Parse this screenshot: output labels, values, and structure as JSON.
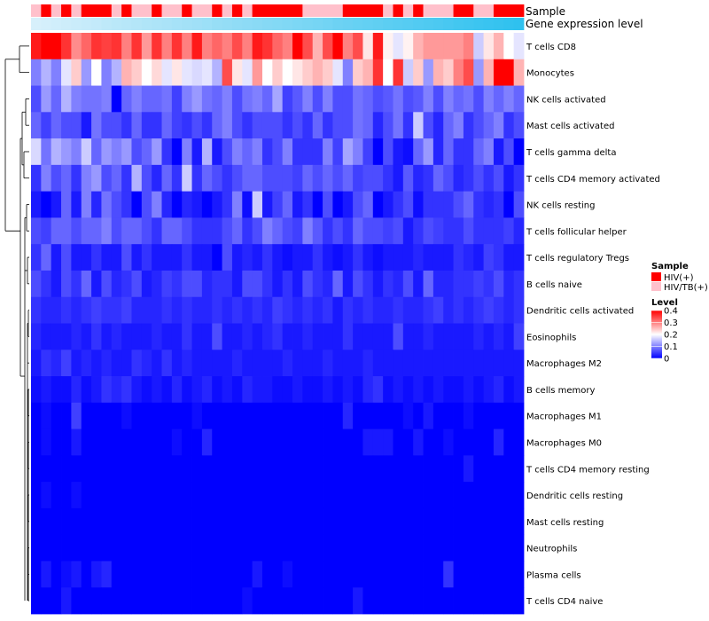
{
  "chart_data": {
    "type": "heatmap",
    "annotation_labels": {
      "sample": "Sample",
      "gene_expression": "Gene expression level"
    },
    "sample_annotation": [
      "HIV/TB(+)",
      "HIV(+)",
      "HIV/TB(+)",
      "HIV(+)",
      "HIV/TB(+)",
      "HIV(+)",
      "HIV(+)",
      "HIV(+)",
      "HIV/TB(+)",
      "HIV(+)",
      "HIV/TB(+)",
      "HIV/TB(+)",
      "HIV(+)",
      "HIV/TB(+)",
      "HIV/TB(+)",
      "HIV(+)",
      "HIV/TB(+)",
      "HIV/TB(+)",
      "HIV(+)",
      "HIV/TB(+)",
      "HIV(+)",
      "HIV/TB(+)",
      "HIV(+)",
      "HIV(+)",
      "HIV(+)",
      "HIV(+)",
      "HIV(+)",
      "HIV/TB(+)",
      "HIV/TB(+)",
      "HIV/TB(+)",
      "HIV/TB(+)",
      "HIV(+)",
      "HIV(+)",
      "HIV(+)",
      "HIV(+)",
      "HIV/TB(+)",
      "HIV(+)",
      "HIV/TB(+)",
      "HIV(+)",
      "HIV/TB(+)",
      "HIV/TB(+)",
      "HIV/TB(+)",
      "HIV(+)",
      "HIV(+)",
      "HIV/TB(+)",
      "HIV/TB(+)",
      "HIV(+)",
      "HIV(+)",
      "HIV(+)"
    ],
    "gene_expression_annotation": [
      0,
      0.02,
      0.04,
      0.06,
      0.08,
      0.1,
      0.12,
      0.15,
      0.17,
      0.19,
      0.21,
      0.23,
      0.25,
      0.27,
      0.29,
      0.31,
      0.33,
      0.35,
      0.38,
      0.4,
      0.42,
      0.44,
      0.46,
      0.48,
      0.5,
      0.52,
      0.54,
      0.56,
      0.58,
      0.6,
      0.63,
      0.65,
      0.67,
      0.69,
      0.71,
      0.73,
      0.75,
      0.77,
      0.79,
      0.81,
      0.83,
      0.85,
      0.88,
      0.9,
      0.92,
      0.94,
      0.96,
      0.98,
      1.0
    ],
    "rows": [
      "T cells CD8",
      "Monocytes",
      "NK cells activated",
      "Mast cells activated",
      "T cells gamma delta",
      "T cells CD4 memory activated",
      "NK cells resting",
      "T cells follicular helper",
      "T cells regulatory  Tregs",
      "B cells naive",
      "Dendritic cells activated",
      "Eosinophils",
      "Macrophages M2",
      "B cells memory",
      "Macrophages M1",
      "Macrophages M0",
      "T cells CD4 memory resting",
      "Dendritic cells resting",
      "Mast cells resting",
      "Neutrophils",
      "Plasma cells",
      "T cells CD4 naive"
    ],
    "values": [
      [
        0.38,
        0.4,
        0.4,
        0.36,
        0.29,
        0.32,
        0.36,
        0.35,
        0.36,
        0.3,
        0.36,
        0.28,
        0.36,
        0.3,
        0.36,
        0.3,
        0.38,
        0.3,
        0.32,
        0.3,
        0.34,
        0.3,
        0.38,
        0.36,
        0.32,
        0.3,
        0.4,
        0.34,
        0.26,
        0.34,
        0.4,
        0.3,
        0.34,
        0.22,
        0.38,
        0.21,
        0.18,
        0.21,
        0.26,
        0.28,
        0.28,
        0.28,
        0.28,
        0.3,
        0.16,
        0.22,
        0.26,
        0.2,
        0.18
      ],
      [
        0.1,
        0.14,
        0.1,
        0.18,
        0.24,
        0.12,
        0.2,
        0.1,
        0.14,
        0.26,
        0.24,
        0.2,
        0.23,
        0.18,
        0.22,
        0.18,
        0.17,
        0.18,
        0.14,
        0.34,
        0.22,
        0.18,
        0.28,
        0.2,
        0.24,
        0.2,
        0.22,
        0.24,
        0.26,
        0.24,
        0.18,
        0.1,
        0.24,
        0.26,
        0.36,
        0.2,
        0.36,
        0.16,
        0.24,
        0.12,
        0.26,
        0.24,
        0.3,
        0.34,
        0.12,
        0.26,
        0.4,
        0.4,
        0.26
      ],
      [
        0.06,
        0.12,
        0.08,
        0.14,
        0.1,
        0.09,
        0.09,
        0.1,
        0.0,
        0.08,
        0.1,
        0.08,
        0.08,
        0.09,
        0.05,
        0.1,
        0.12,
        0.09,
        0.08,
        0.1,
        0.06,
        0.09,
        0.1,
        0.08,
        0.13,
        0.05,
        0.07,
        0.1,
        0.06,
        0.1,
        0.06,
        0.06,
        0.09,
        0.08,
        0.06,
        0.07,
        0.09,
        0.06,
        0.07,
        0.1,
        0.06,
        0.1,
        0.08,
        0.09,
        0.06,
        0.1,
        0.08,
        0.1,
        0.08
      ],
      [
        0.08,
        0.05,
        0.08,
        0.06,
        0.06,
        0.02,
        0.09,
        0.06,
        0.06,
        0.04,
        0.08,
        0.04,
        0.04,
        0.08,
        0.05,
        0.04,
        0.06,
        0.04,
        0.08,
        0.1,
        0.06,
        0.04,
        0.06,
        0.06,
        0.06,
        0.04,
        0.06,
        0.04,
        0.08,
        0.04,
        0.06,
        0.06,
        0.09,
        0.08,
        0.03,
        0.06,
        0.09,
        0.04,
        0.16,
        0.06,
        0.03,
        0.08,
        0.1,
        0.04,
        0.06,
        0.08,
        0.1,
        0.04,
        0.06
      ],
      [
        0.17,
        0.09,
        0.14,
        0.12,
        0.1,
        0.16,
        0.08,
        0.12,
        0.1,
        0.12,
        0.06,
        0.08,
        0.12,
        0.04,
        0.0,
        0.1,
        0.02,
        0.14,
        0.02,
        0.06,
        0.1,
        0.08,
        0.1,
        0.04,
        0.06,
        0.1,
        0.04,
        0.04,
        0.04,
        0.1,
        0.05,
        0.13,
        0.1,
        0.05,
        0.0,
        0.06,
        0.02,
        0.01,
        0.08,
        0.12,
        0.03,
        0.08,
        0.04,
        0.04,
        0.08,
        0.1,
        0.02,
        0.06,
        0.0
      ],
      [
        0.04,
        0.1,
        0.06,
        0.08,
        0.04,
        0.1,
        0.12,
        0.06,
        0.08,
        0.04,
        0.14,
        0.06,
        0.03,
        0.08,
        0.04,
        0.16,
        0.04,
        0.08,
        0.06,
        0.04,
        0.06,
        0.08,
        0.08,
        0.06,
        0.06,
        0.06,
        0.05,
        0.08,
        0.06,
        0.08,
        0.06,
        0.08,
        0.05,
        0.06,
        0.06,
        0.04,
        0.02,
        0.07,
        0.03,
        0.04,
        0.08,
        0.06,
        0.03,
        0.04,
        0.06,
        0.04,
        0.06,
        0.02,
        0.04
      ],
      [
        0.02,
        0.0,
        0.02,
        0.08,
        0.02,
        0.1,
        0.03,
        0.09,
        0.06,
        0.04,
        0.0,
        0.06,
        0.1,
        0.03,
        0.0,
        0.03,
        0.02,
        0.0,
        0.02,
        0.04,
        0.1,
        0.01,
        0.16,
        0.02,
        0.05,
        0.08,
        0.02,
        0.04,
        0.0,
        0.06,
        0.0,
        0.02,
        0.06,
        0.08,
        0.0,
        0.02,
        0.04,
        0.06,
        0.01,
        0.04,
        0.04,
        0.04,
        0.06,
        0.08,
        0.04,
        0.03,
        0.04,
        0.0,
        0.06
      ],
      [
        0.06,
        0.05,
        0.08,
        0.08,
        0.06,
        0.08,
        0.08,
        0.1,
        0.06,
        0.08,
        0.08,
        0.06,
        0.04,
        0.08,
        0.08,
        0.06,
        0.04,
        0.04,
        0.04,
        0.06,
        0.08,
        0.04,
        0.06,
        0.1,
        0.08,
        0.06,
        0.05,
        0.1,
        0.07,
        0.04,
        0.06,
        0.04,
        0.08,
        0.06,
        0.06,
        0.05,
        0.06,
        0.02,
        0.04,
        0.06,
        0.05,
        0.04,
        0.04,
        0.06,
        0.04,
        0.04,
        0.04,
        0.05,
        0.03
      ],
      [
        0.04,
        0.08,
        0.02,
        0.06,
        0.02,
        0.02,
        0.04,
        0.02,
        0.02,
        0.06,
        0.02,
        0.04,
        0.02,
        0.02,
        0.02,
        0.04,
        0.02,
        0.02,
        0.0,
        0.06,
        0.02,
        0.03,
        0.02,
        0.04,
        0.02,
        0.01,
        0.02,
        0.02,
        0.04,
        0.02,
        0.01,
        0.02,
        0.04,
        0.02,
        0.01,
        0.02,
        0.02,
        0.02,
        0.03,
        0.02,
        0.02,
        0.02,
        0.04,
        0.03,
        0.02,
        0.05,
        0.04,
        0.02,
        0.02
      ],
      [
        0.06,
        0.04,
        0.02,
        0.06,
        0.04,
        0.08,
        0.02,
        0.06,
        0.03,
        0.04,
        0.06,
        0.02,
        0.03,
        0.05,
        0.04,
        0.06,
        0.06,
        0.03,
        0.04,
        0.04,
        0.02,
        0.06,
        0.06,
        0.04,
        0.02,
        0.04,
        0.02,
        0.06,
        0.04,
        0.03,
        0.08,
        0.02,
        0.06,
        0.04,
        0.02,
        0.04,
        0.03,
        0.06,
        0.02,
        0.08,
        0.03,
        0.03,
        0.04,
        0.04,
        0.05,
        0.04,
        0.06,
        0.03,
        0.04
      ],
      [
        0.04,
        0.03,
        0.03,
        0.04,
        0.03,
        0.04,
        0.05,
        0.04,
        0.04,
        0.05,
        0.03,
        0.03,
        0.03,
        0.04,
        0.03,
        0.04,
        0.03,
        0.03,
        0.04,
        0.03,
        0.04,
        0.03,
        0.04,
        0.03,
        0.05,
        0.04,
        0.03,
        0.04,
        0.03,
        0.04,
        0.02,
        0.04,
        0.03,
        0.04,
        0.03,
        0.03,
        0.04,
        0.03,
        0.03,
        0.04,
        0.05,
        0.03,
        0.04,
        0.03,
        0.04,
        0.05,
        0.04,
        0.03,
        0.04
      ],
      [
        0.03,
        0.02,
        0.02,
        0.02,
        0.03,
        0.02,
        0.04,
        0.02,
        0.03,
        0.02,
        0.02,
        0.02,
        0.03,
        0.02,
        0.02,
        0.04,
        0.02,
        0.02,
        0.06,
        0.02,
        0.02,
        0.03,
        0.02,
        0.03,
        0.04,
        0.02,
        0.02,
        0.03,
        0.02,
        0.02,
        0.02,
        0.04,
        0.02,
        0.02,
        0.02,
        0.02,
        0.06,
        0.02,
        0.02,
        0.03,
        0.02,
        0.02,
        0.02,
        0.02,
        0.03,
        0.02,
        0.03,
        0.02,
        0.05
      ],
      [
        0.02,
        0.04,
        0.03,
        0.05,
        0.02,
        0.03,
        0.02,
        0.03,
        0.02,
        0.02,
        0.04,
        0.03,
        0.02,
        0.04,
        0.02,
        0.03,
        0.02,
        0.02,
        0.02,
        0.02,
        0.03,
        0.02,
        0.02,
        0.02,
        0.02,
        0.03,
        0.02,
        0.02,
        0.02,
        0.03,
        0.02,
        0.02,
        0.02,
        0.03,
        0.02,
        0.02,
        0.02,
        0.02,
        0.02,
        0.02,
        0.02,
        0.02,
        0.02,
        0.02,
        0.02,
        0.02,
        0.02,
        0.02,
        0.02
      ],
      [
        0.01,
        0.02,
        0.01,
        0.01,
        0.03,
        0.01,
        0.02,
        0.04,
        0.03,
        0.04,
        0.02,
        0.01,
        0.02,
        0.01,
        0.03,
        0.01,
        0.02,
        0.03,
        0.01,
        0.02,
        0.01,
        0.03,
        0.02,
        0.02,
        0.01,
        0.01,
        0.02,
        0.01,
        0.01,
        0.02,
        0.01,
        0.02,
        0.01,
        0.03,
        0.04,
        0.01,
        0.02,
        0.01,
        0.02,
        0.01,
        0.02,
        0.01,
        0.01,
        0.02,
        0.01,
        0.02,
        0.03,
        0.01,
        0.02
      ],
      [
        0.0,
        0.01,
        0.0,
        0.0,
        0.05,
        0.0,
        0.0,
        0.0,
        0.0,
        0.01,
        0.0,
        0.0,
        0.0,
        0.0,
        0.0,
        0.0,
        0.01,
        0.0,
        0.0,
        0.0,
        0.0,
        0.0,
        0.0,
        0.0,
        0.0,
        0.0,
        0.0,
        0.0,
        0.0,
        0.0,
        0.0,
        0.03,
        0.0,
        0.0,
        0.0,
        0.0,
        0.0,
        0.01,
        0.0,
        0.02,
        0.0,
        0.0,
        0.0,
        0.01,
        0.0,
        0.0,
        0.0,
        0.0,
        0.0
      ],
      [
        0.0,
        0.01,
        0.0,
        0.0,
        0.02,
        0.0,
        0.0,
        0.0,
        0.0,
        0.0,
        0.0,
        0.0,
        0.0,
        0.0,
        0.01,
        0.0,
        0.0,
        0.03,
        0.0,
        0.0,
        0.0,
        0.0,
        0.0,
        0.0,
        0.0,
        0.0,
        0.0,
        0.0,
        0.0,
        0.0,
        0.0,
        0.0,
        0.0,
        0.02,
        0.02,
        0.02,
        0.0,
        0.0,
        0.02,
        0.0,
        0.0,
        0.01,
        0.0,
        0.0,
        0.0,
        0.0,
        0.03,
        0.0,
        0.0
      ],
      [
        0.0,
        0.0,
        0.0,
        0.0,
        0.0,
        0.0,
        0.0,
        0.0,
        0.0,
        0.0,
        0.0,
        0.0,
        0.0,
        0.0,
        0.0,
        0.0,
        0.0,
        0.0,
        0.0,
        0.0,
        0.0,
        0.0,
        0.0,
        0.0,
        0.0,
        0.0,
        0.0,
        0.0,
        0.0,
        0.0,
        0.0,
        0.0,
        0.0,
        0.0,
        0.0,
        0.0,
        0.0,
        0.0,
        0.0,
        0.0,
        0.0,
        0.0,
        0.0,
        0.02,
        0.0,
        0.0,
        0.0,
        0.0,
        0.0
      ],
      [
        0.0,
        0.01,
        0.0,
        0.0,
        0.01,
        0.0,
        0.0,
        0.0,
        0.0,
        0.0,
        0.0,
        0.0,
        0.0,
        0.0,
        0.0,
        0.0,
        0.0,
        0.0,
        0.0,
        0.0,
        0.0,
        0.0,
        0.0,
        0.0,
        0.0,
        0.0,
        0.0,
        0.0,
        0.0,
        0.0,
        0.0,
        0.0,
        0.0,
        0.0,
        0.0,
        0.0,
        0.0,
        0.0,
        0.0,
        0.0,
        0.0,
        0.0,
        0.0,
        0.0,
        0.0,
        0.0,
        0.0,
        0.0,
        0.0
      ],
      [
        0.0,
        0.0,
        0.0,
        0.0,
        0.0,
        0.0,
        0.0,
        0.0,
        0.0,
        0.0,
        0.0,
        0.0,
        0.0,
        0.0,
        0.0,
        0.0,
        0.0,
        0.0,
        0.0,
        0.0,
        0.0,
        0.0,
        0.0,
        0.0,
        0.0,
        0.0,
        0.0,
        0.0,
        0.0,
        0.0,
        0.0,
        0.0,
        0.0,
        0.0,
        0.0,
        0.0,
        0.0,
        0.0,
        0.0,
        0.0,
        0.0,
        0.0,
        0.0,
        0.0,
        0.0,
        0.0,
        0.0,
        0.0,
        0.0
      ],
      [
        0.0,
        0.0,
        0.0,
        0.0,
        0.0,
        0.0,
        0.0,
        0.0,
        0.0,
        0.0,
        0.0,
        0.0,
        0.0,
        0.0,
        0.0,
        0.0,
        0.0,
        0.0,
        0.0,
        0.0,
        0.0,
        0.0,
        0.0,
        0.0,
        0.0,
        0.0,
        0.0,
        0.0,
        0.0,
        0.0,
        0.0,
        0.0,
        0.0,
        0.0,
        0.0,
        0.0,
        0.0,
        0.0,
        0.0,
        0.0,
        0.0,
        0.0,
        0.0,
        0.0,
        0.0,
        0.0,
        0.0,
        0.0,
        0.0
      ],
      [
        0.0,
        0.02,
        0.0,
        0.01,
        0.02,
        0.0,
        0.02,
        0.03,
        0.0,
        0.0,
        0.0,
        0.0,
        0.0,
        0.0,
        0.0,
        0.0,
        0.0,
        0.0,
        0.0,
        0.0,
        0.0,
        0.0,
        0.02,
        0.0,
        0.0,
        0.01,
        0.0,
        0.0,
        0.0,
        0.0,
        0.0,
        0.0,
        0.0,
        0.0,
        0.0,
        0.0,
        0.0,
        0.0,
        0.0,
        0.0,
        0.0,
        0.04,
        0.0,
        0.0,
        0.0,
        0.0,
        0.0,
        0.0,
        0.0
      ],
      [
        0.0,
        0.0,
        0.0,
        0.02,
        0.0,
        0.0,
        0.0,
        0.0,
        0.0,
        0.0,
        0.0,
        0.0,
        0.0,
        0.0,
        0.0,
        0.0,
        0.0,
        0.0,
        0.0,
        0.0,
        0.0,
        0.01,
        0.0,
        0.0,
        0.0,
        0.0,
        0.0,
        0.0,
        0.0,
        0.0,
        0.0,
        0.0,
        0.02,
        0.0,
        0.0,
        0.0,
        0.0,
        0.0,
        0.0,
        0.0,
        0.0,
        0.0,
        0.0,
        0.0,
        0.0,
        0.0,
        0.0,
        0.0,
        0.0
      ]
    ],
    "color_scale": {
      "low": "#0000ff",
      "mid": "#ffffff",
      "high": "#ff0000",
      "min": 0,
      "mid_value": 0.2,
      "max": 0.4
    },
    "legend": {
      "sample_title": "Sample",
      "sample_entries": [
        {
          "label": "HIV(+)",
          "color": "#ff0000"
        },
        {
          "label": "HIV/TB(+)",
          "color": "#ffc0cb"
        }
      ],
      "level_title": "Level",
      "level_ticks": [
        {
          "value": 0.4,
          "label": "0.4"
        },
        {
          "value": 0.3,
          "label": "0.3"
        },
        {
          "value": 0.2,
          "label": "0.2"
        },
        {
          "value": 0.1,
          "label": "0.1"
        },
        {
          "value": 0,
          "label": "0"
        }
      ],
      "placement": "right"
    },
    "gene_expression_colors": {
      "low": "#d7f0fb",
      "high": "#2fc1ef"
    },
    "dendrogram": "rows"
  }
}
